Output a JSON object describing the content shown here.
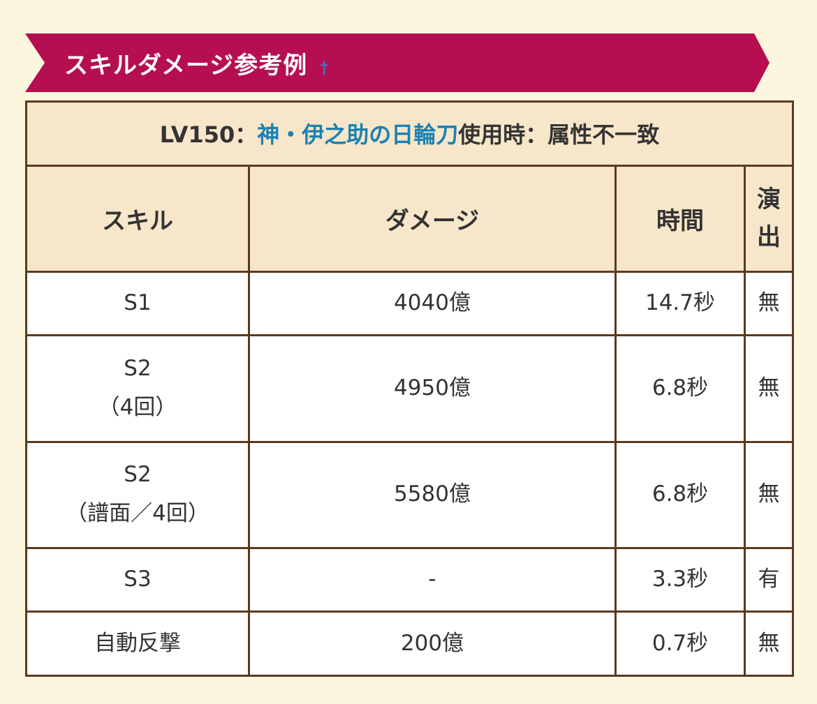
{
  "section": {
    "title": "スキルダメージ参考例",
    "anchor": "†"
  },
  "table": {
    "caption": {
      "prefix": "LV150：",
      "weapon": "神・伊之助の日輪刀",
      "suffix": "使用時：属性不一致"
    },
    "headers": {
      "skill": "スキル",
      "damage": "ダメージ",
      "time": "時間",
      "effect_line1": "演",
      "effect_line2": "出"
    },
    "rows": [
      {
        "skill": "S1",
        "skill_note": "",
        "damage": "4040億",
        "time": "14.7秒",
        "effect": "無"
      },
      {
        "skill": "S2",
        "skill_note": "（4回）",
        "damage": "4950億",
        "time": "6.8秒",
        "effect": "無"
      },
      {
        "skill": "S2",
        "skill_note": "（譜面／4回）",
        "damage": "5580億",
        "time": "6.8秒",
        "effect": "無"
      },
      {
        "skill": "S3",
        "skill_note": "",
        "damage": "-",
        "time": "3.3秒",
        "effect": "有"
      },
      {
        "skill": "自動反撃",
        "skill_note": "",
        "damage": "200億",
        "time": "0.7秒",
        "effect": "無"
      }
    ]
  }
}
